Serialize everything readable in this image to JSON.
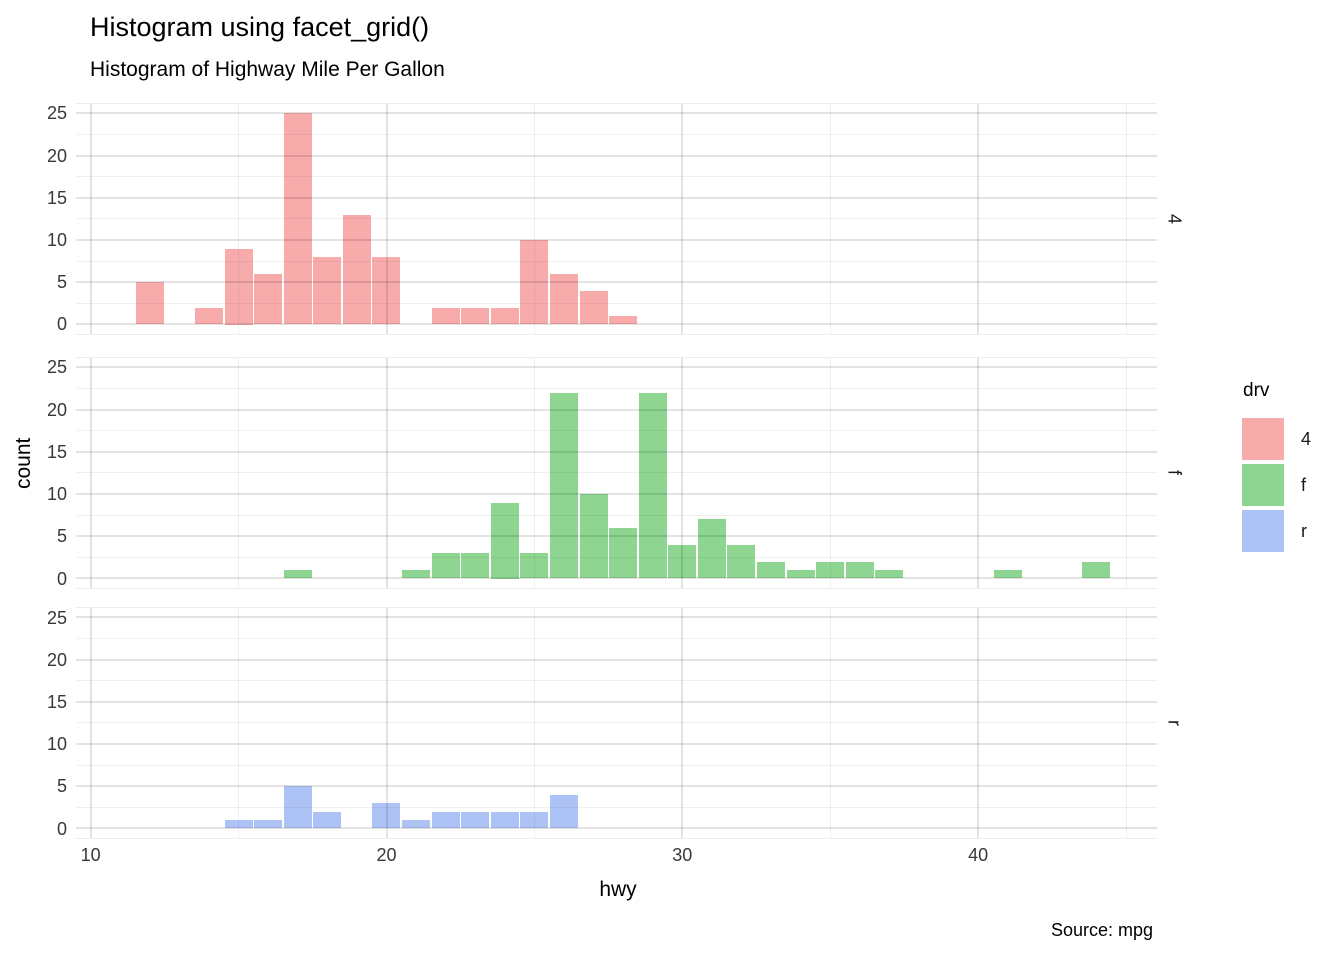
{
  "title": "Histogram using facet_grid()",
  "subtitle": "Histogram of Highway Mile Per Gallon",
  "caption": "Source: mpg",
  "chart_data": {
    "type": "bar",
    "subtype": "faceted-histogram",
    "title": "Histogram using facet_grid()",
    "subtitle": "Histogram of Highway Mile Per Gallon",
    "caption": "Source: mpg",
    "xlabel": "hwy",
    "ylabel": "count",
    "binwidth": 1,
    "x_ticks": [
      10,
      20,
      30,
      40
    ],
    "x_minor_ticks": [
      15,
      25,
      35,
      45
    ],
    "y_ticks": [
      0,
      5,
      10,
      15,
      20,
      25
    ],
    "y_minor_ticks": [
      2.5,
      7.5,
      12.5,
      17.5,
      22.5
    ],
    "x_range": [
      9.5,
      46.1
    ],
    "y_range": [
      -1.25,
      26.25
    ],
    "grid": true,
    "legend": {
      "title": "drv",
      "position": "right",
      "entries": [
        {
          "label": "4",
          "color": "#F8ABAB"
        },
        {
          "label": "f",
          "color": "#8DD590"
        },
        {
          "label": "r",
          "color": "#AEC3F5"
        }
      ]
    },
    "facets": [
      {
        "strip_label": "4",
        "series_name": "drv = 4",
        "color": "#F8ABAB",
        "bars": [
          [
            12,
            5
          ],
          [
            14,
            2
          ],
          [
            15,
            9
          ],
          [
            16,
            6
          ],
          [
            17,
            25
          ],
          [
            18,
            8
          ],
          [
            19,
            13
          ],
          [
            20,
            8
          ],
          [
            22,
            2
          ],
          [
            23,
            2
          ],
          [
            24,
            2
          ],
          [
            25,
            10
          ],
          [
            26,
            6
          ],
          [
            27,
            4
          ],
          [
            28,
            1
          ]
        ]
      },
      {
        "strip_label": "f",
        "series_name": "drv = f",
        "color": "#8DD590",
        "bars": [
          [
            17,
            1
          ],
          [
            21,
            1
          ],
          [
            22,
            3
          ],
          [
            23,
            3
          ],
          [
            24,
            9
          ],
          [
            25,
            3
          ],
          [
            26,
            22
          ],
          [
            27,
            10
          ],
          [
            28,
            6
          ],
          [
            29,
            22
          ],
          [
            30,
            4
          ],
          [
            31,
            7
          ],
          [
            32,
            4
          ],
          [
            33,
            2
          ],
          [
            34,
            1
          ],
          [
            35,
            2
          ],
          [
            36,
            2
          ],
          [
            37,
            1
          ],
          [
            41,
            1
          ],
          [
            44,
            2
          ]
        ]
      },
      {
        "strip_label": "r",
        "series_name": "drv = r",
        "color": "#AEC3F5",
        "bars": [
          [
            15,
            1
          ],
          [
            16,
            1
          ],
          [
            17,
            5
          ],
          [
            18,
            2
          ],
          [
            20,
            3
          ],
          [
            21,
            1
          ],
          [
            22,
            2
          ],
          [
            23,
            2
          ],
          [
            24,
            2
          ],
          [
            25,
            2
          ],
          [
            26,
            4
          ]
        ]
      }
    ]
  }
}
